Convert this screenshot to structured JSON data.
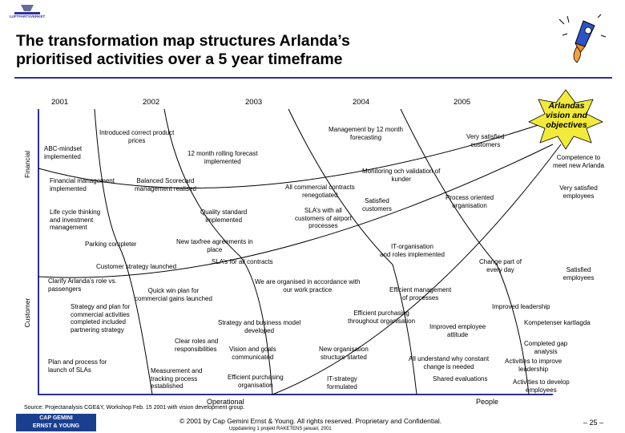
{
  "header": {
    "top_logo_text": "LUFTFARTSVERKET",
    "title_line1": "The transformation map structures Arlanda’s",
    "title_line2": "prioritised activities over a 5 year timeframe"
  },
  "years": [
    "2001",
    "2002",
    "2003",
    "2004",
    "2005"
  ],
  "vision": {
    "line1": "Arlandas",
    "line2": "vision and",
    "line3": "objectives",
    "color": "#f2ea3a"
  },
  "axes": {
    "financial": "Financial",
    "customer": "Customer",
    "operational": "Operational",
    "people": "People"
  },
  "objectives": {
    "competence": "Competence to\nmeet new Arlanda",
    "employees": "Very satisfied\nemployees",
    "satisfied": "Satisfied\nemployees"
  },
  "activities": {
    "abc": "ABC-mindset\nimplemented",
    "product_prices": "Introduced correct product\nprices",
    "rolling_forecast": "12 month rolling forecast\nimplemented",
    "mgmt_forecasting": "Management by 12 month\nforecasting",
    "very_satisfied_customers": "Very satisfied\ncustomers",
    "fin_mgmt": "Financial management\nimplemented",
    "scorecard": "Balanced Scorecard\nmanagement realised",
    "monitoring": "Monitoring och validation of\nkunder",
    "contracts": "All commercial contracts\nrenegotiated",
    "satisfied_customers": "Satisfied\ncustomers",
    "process_org": "Process oriented\norganisation",
    "lifecycle": "Life cycle thinking\nand investment\nmanagement",
    "quality_std": "Quality standard\nimplemented",
    "sla_airport": "SLA’s with all\ncustomers of airport\nprocesses",
    "parking": "Parking completer",
    "taxfree": "New taxfree agreements in\nplace",
    "it_org": "IT-organisation\nand roles implemented",
    "sla_contracts": "SLA’s for all contracts",
    "customer_strategy": "Customer strategy launched",
    "change_part": "Change part of\nevery day",
    "clarify": "Clarify Arlanda’s role vs.\npassengers",
    "organised": "We are organised in accordance with\nour work practice",
    "efficient_mgmt": "Efficient management\nof processes",
    "quick_win": "Quick win plan for\ncommercial gains launched",
    "strategy_plan": "Strategy and plan for\ncommercial activities\ncompleted included\npartnering strategy",
    "improved_leadership": "Improved leadership",
    "efficient_purchasing": "Efficient purchasing\nthroughout organisation",
    "kompetenser": "Kompetenser kartlagda",
    "strategy_business": "Strategy and business model\ndeveloped",
    "improved_employee": "Improved employee\nattitude",
    "completed_gap": "Completed gap\nanalysis",
    "clear_roles": "Clear roles and\nresponsibilities",
    "vision_goals": "Vision and goals\ncommunicated",
    "new_org": "New organisation\nstructure started",
    "all_understand": "All understand why constant\nchange is needed",
    "activities_improve": "Activities to improve\nleadership",
    "plan_sla": "Plan and process for\nlaunch of SLAs",
    "measurement": "Measurement and\ntracking process\nestablished",
    "efficient_purchasing_org": "Efficient purchasing\norganisation",
    "it_strategy": "IT-strategy\nformulated",
    "shared_evaluations": "Shared evaluations",
    "activities_develop": "Activities to develop\nemployees"
  },
  "footer": {
    "source": "Source: Projectanalysis CGE&Y, Workshop Feb. 15 2001 with vision development group.",
    "copyright": "© 2001 by Cap Gemini Ernst & Young. All rights reserved. Proprietary and Confidential.",
    "update": "Uppdatering 1 projekt RAKETENS januari, 2001",
    "page": "– 25 –",
    "logo_line1": "CAP GEMINI",
    "logo_line2": "ERNST & YOUNG",
    "logo_color": "#1b3f8f"
  }
}
